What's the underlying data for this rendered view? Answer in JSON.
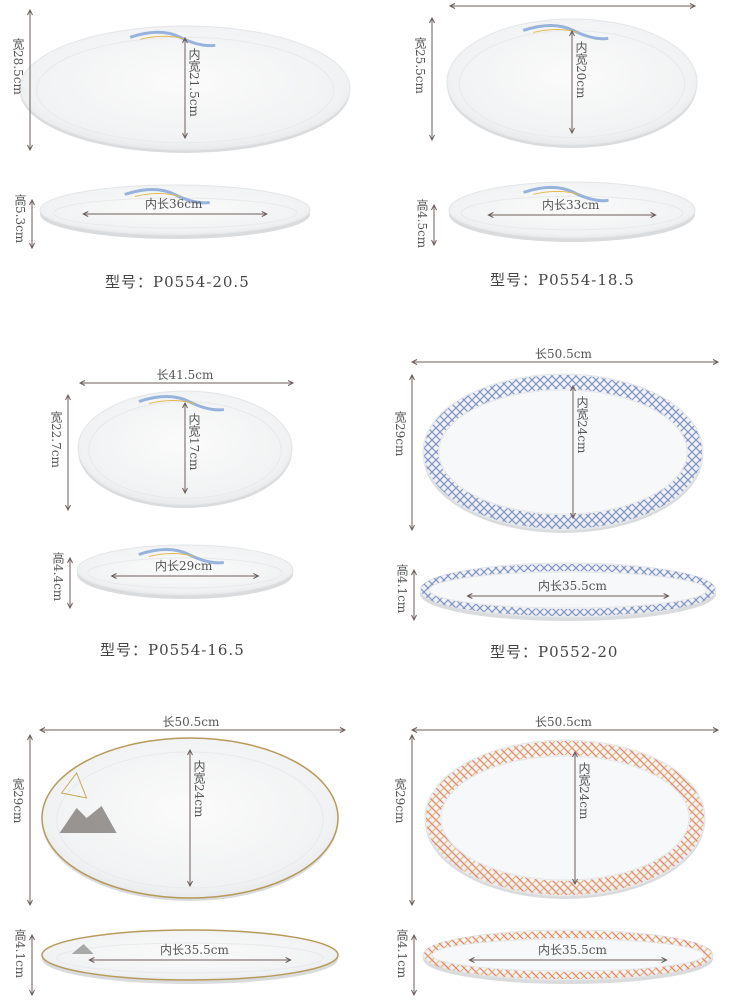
{
  "colors": {
    "dimension_line": "#6b5e5a",
    "blue_lattice": "#7f93c4",
    "red_lattice": "#e07a7a",
    "gold_rim": "#b79a5a"
  },
  "products": [
    {
      "length": "",
      "width": "宽28.5cm",
      "inner_width": "内宽21.5cm",
      "inner_length": "内长36cm",
      "height": "高5.3cm",
      "model": "型号：P0554-20.5",
      "pattern": "blue-brush"
    },
    {
      "length": "",
      "width": "宽25.5cm",
      "inner_width": "内宽20cm",
      "inner_length": "内长33cm",
      "height": "高4.5cm",
      "model": "型号：P0554-18.5",
      "pattern": "blue-brush"
    },
    {
      "length": "长41.5cm",
      "width": "宽22.7cm",
      "inner_width": "内宽17cm",
      "inner_length": "内长29cm",
      "height": "高4.4cm",
      "model": "型号：P0554-16.5",
      "pattern": "blue-brush"
    },
    {
      "length": "长50.5cm",
      "width": "宽29cm",
      "inner_width": "内宽24cm",
      "inner_length": "内长35.5cm",
      "height": "高4.1cm",
      "model": "型号：P0552-20",
      "pattern": "blue-lattice"
    },
    {
      "length": "长50.5cm",
      "width": "宽29cm",
      "inner_width": "内宽24cm",
      "inner_length": "内长35.5cm",
      "height": "高4.1cm",
      "model": "",
      "pattern": "gold-rim-mountain"
    },
    {
      "length": "长50.5cm",
      "width": "宽29cm",
      "inner_width": "内宽24cm",
      "inner_length": "内长35.5cm",
      "height": "高4.1cm",
      "model": "",
      "pattern": "red-lattice"
    }
  ]
}
